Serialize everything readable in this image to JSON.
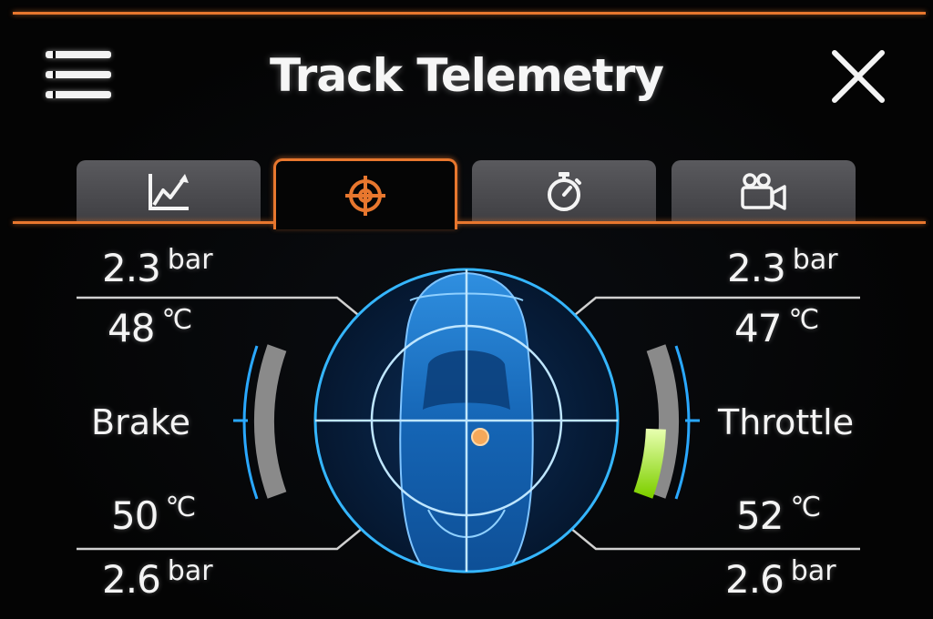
{
  "header": {
    "title": "Track Telemetry",
    "menu_icon": "hamburger-menu-icon",
    "close_icon": "close-icon"
  },
  "tabs": [
    {
      "icon": "line-chart-icon",
      "active": false
    },
    {
      "icon": "crosshair-target-icon",
      "active": true
    },
    {
      "icon": "stopwatch-icon",
      "active": false
    },
    {
      "icon": "video-camera-icon",
      "active": false
    }
  ],
  "tires": {
    "front_left": {
      "pressure": "2.3",
      "pressure_unit": "bar",
      "temp": "48",
      "temp_unit": "℃"
    },
    "front_right": {
      "pressure": "2.3",
      "pressure_unit": "bar",
      "temp": "47",
      "temp_unit": "℃"
    },
    "rear_left": {
      "pressure": "2.6",
      "pressure_unit": "bar",
      "temp": "50",
      "temp_unit": "℃"
    },
    "rear_right": {
      "pressure": "2.6",
      "pressure_unit": "bar",
      "temp": "52",
      "temp_unit": "℃"
    }
  },
  "gauges": {
    "brake": {
      "label": "Brake",
      "level": 0
    },
    "throttle": {
      "label": "Throttle",
      "level": 0.45
    }
  },
  "colors": {
    "accent": "#e8772e",
    "gauge_cyan": "#2aa8ff",
    "throttle_fill": "#9ee000",
    "gauge_track": "#8a8a8a"
  }
}
